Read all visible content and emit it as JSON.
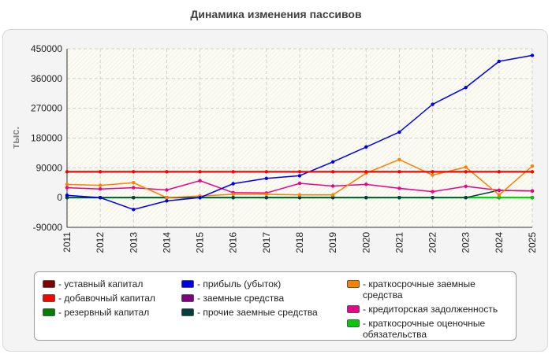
{
  "chart_data": {
    "type": "line",
    "title": "Динамика изменения пассивов",
    "ylabel": "тыс.",
    "xlabel": "",
    "x": [
      2011,
      2012,
      2013,
      2014,
      2015,
      2016,
      2017,
      2018,
      2019,
      2020,
      2021,
      2022,
      2023,
      2024,
      2025
    ],
    "ylim": [
      -90000,
      450000
    ],
    "yticks": [
      "450000",
      "360000",
      "270000",
      "180000",
      "90000",
      "0",
      "-90000"
    ],
    "ytick_values": [
      450000,
      360000,
      270000,
      180000,
      90000,
      0,
      -90000
    ],
    "grid": true,
    "legend_position": "bottom",
    "series": [
      {
        "name": "уставный капитал",
        "color": "#800000",
        "values": [
          0,
          0,
          0,
          0,
          0,
          0,
          0,
          0,
          0,
          0,
          0,
          0,
          0,
          0,
          0
        ]
      },
      {
        "name": "добавочный капитал",
        "color": "#ff0000",
        "values": [
          78000,
          78000,
          78000,
          78000,
          78000,
          78000,
          78000,
          78000,
          78000,
          78000,
          78000,
          78000,
          78000,
          78000,
          78000
        ]
      },
      {
        "name": "резервный капитал",
        "color": "#008000",
        "values": [
          0,
          0,
          0,
          0,
          0,
          0,
          0,
          0,
          0,
          0,
          0,
          0,
          0,
          0,
          0
        ]
      },
      {
        "name": "прибыль (убыток)",
        "color": "#0000ee",
        "values": [
          7000,
          0,
          -36000,
          -10000,
          0,
          42000,
          58000,
          66000,
          108000,
          153000,
          198000,
          282000,
          333000,
          412000,
          430000
        ]
      },
      {
        "name": "заемные средства",
        "color": "#800080",
        "values": [
          0,
          0,
          0,
          0,
          0,
          0,
          0,
          0,
          0,
          0,
          0,
          0,
          0,
          0,
          0
        ]
      },
      {
        "name": "прочие заемные средства",
        "color": "#004040",
        "values": [
          0,
          0,
          0,
          0,
          0,
          0,
          0,
          0,
          0,
          0,
          0,
          0,
          0,
          22000,
          20000
        ]
      },
      {
        "name": "краткосрочные заемные средства",
        "color": "#ff8000",
        "values": [
          40000,
          37000,
          45000,
          0,
          5000,
          10000,
          10000,
          8000,
          8000,
          74000,
          115000,
          68000,
          92000,
          8000,
          95000
        ]
      },
      {
        "name": "кредиторская задолженность",
        "color": "#ee0088",
        "values": [
          30000,
          26000,
          30000,
          23000,
          51000,
          15000,
          14000,
          43000,
          35000,
          40000,
          28000,
          18000,
          34000,
          22000,
          20000
        ]
      },
      {
        "name": "краткосрочные оценочные обязательства",
        "color": "#00cc00",
        "values": [
          0,
          0,
          0,
          0,
          0,
          0,
          0,
          0,
          0,
          0,
          0,
          0,
          0,
          0,
          0
        ]
      }
    ]
  },
  "legend": {
    "items": [
      {
        "label": "- уставный капитал"
      },
      {
        "label": "- добавочный капитал"
      },
      {
        "label": "- резервный капитал"
      },
      {
        "label": "- прибыль (убыток)"
      },
      {
        "label": "- заемные средства"
      },
      {
        "label": "- прочие заемные средства"
      },
      {
        "label": "- краткосрочные заемные средства"
      },
      {
        "label": "- кредиторская задолженность"
      },
      {
        "label": "- краткосрочные оценочные обязательства"
      }
    ]
  }
}
